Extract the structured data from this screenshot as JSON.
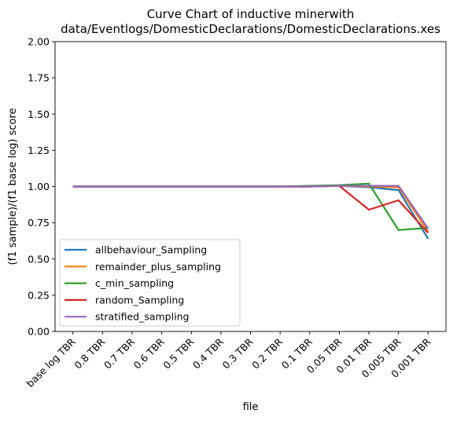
{
  "chart_data": {
    "type": "line",
    "title": "Curve Chart of inductive minerwith\ndata/Eventlogs/DomesticDeclarations/DomesticDeclarations.xes",
    "xlabel": "file",
    "ylabel": "(f1 sample)/(f1 base log) score",
    "ylim": [
      0.0,
      2.0
    ],
    "yticks": [
      "0.00",
      "0.25",
      "0.50",
      "0.75",
      "1.00",
      "1.25",
      "1.50",
      "1.75",
      "2.00"
    ],
    "categories": [
      "base log TBR",
      "0.8 TBR",
      "0.7 TBR",
      "0.6 TBR",
      "0.5 TBR",
      "0.4 TBR",
      "0.3 TBR",
      "0.2 TBR",
      "0.1 TBR",
      "0.05 TBR",
      "0.01 TBR",
      "0.005 TBR",
      "0.001 TBR"
    ],
    "grid": false,
    "legend_position": "lower-left",
    "series": [
      {
        "name": "allbehaviour_Sampling",
        "color": "#1f77b4",
        "values": [
          1.0,
          1.0,
          1.0,
          1.0,
          1.0,
          1.0,
          1.0,
          1.0,
          1.0,
          1.005,
          0.995,
          0.975,
          0.64
        ]
      },
      {
        "name": "remainder_plus_sampling",
        "color": "#ff7f0e",
        "values": [
          1.0,
          1.0,
          1.0,
          1.0,
          1.0,
          1.0,
          1.0,
          1.0,
          1.0,
          1.005,
          1.0,
          0.995,
          0.69
        ]
      },
      {
        "name": "c_min_sampling",
        "color": "#2ca02c",
        "values": [
          1.0,
          1.0,
          1.0,
          1.0,
          1.0,
          1.0,
          1.0,
          1.0,
          1.005,
          1.01,
          1.02,
          0.7,
          0.715
        ]
      },
      {
        "name": "random_Sampling",
        "color": "#d62728",
        "values": [
          1.0,
          1.0,
          1.0,
          1.0,
          1.0,
          1.0,
          1.0,
          1.0,
          1.0,
          1.005,
          0.84,
          0.905,
          0.68
        ]
      },
      {
        "name": "stratified_sampling",
        "color": "#9467bd",
        "values": [
          1.0,
          1.0,
          1.0,
          1.0,
          1.0,
          1.0,
          1.0,
          1.0,
          1.0,
          1.005,
          1.005,
          1.005,
          0.71
        ]
      }
    ]
  }
}
